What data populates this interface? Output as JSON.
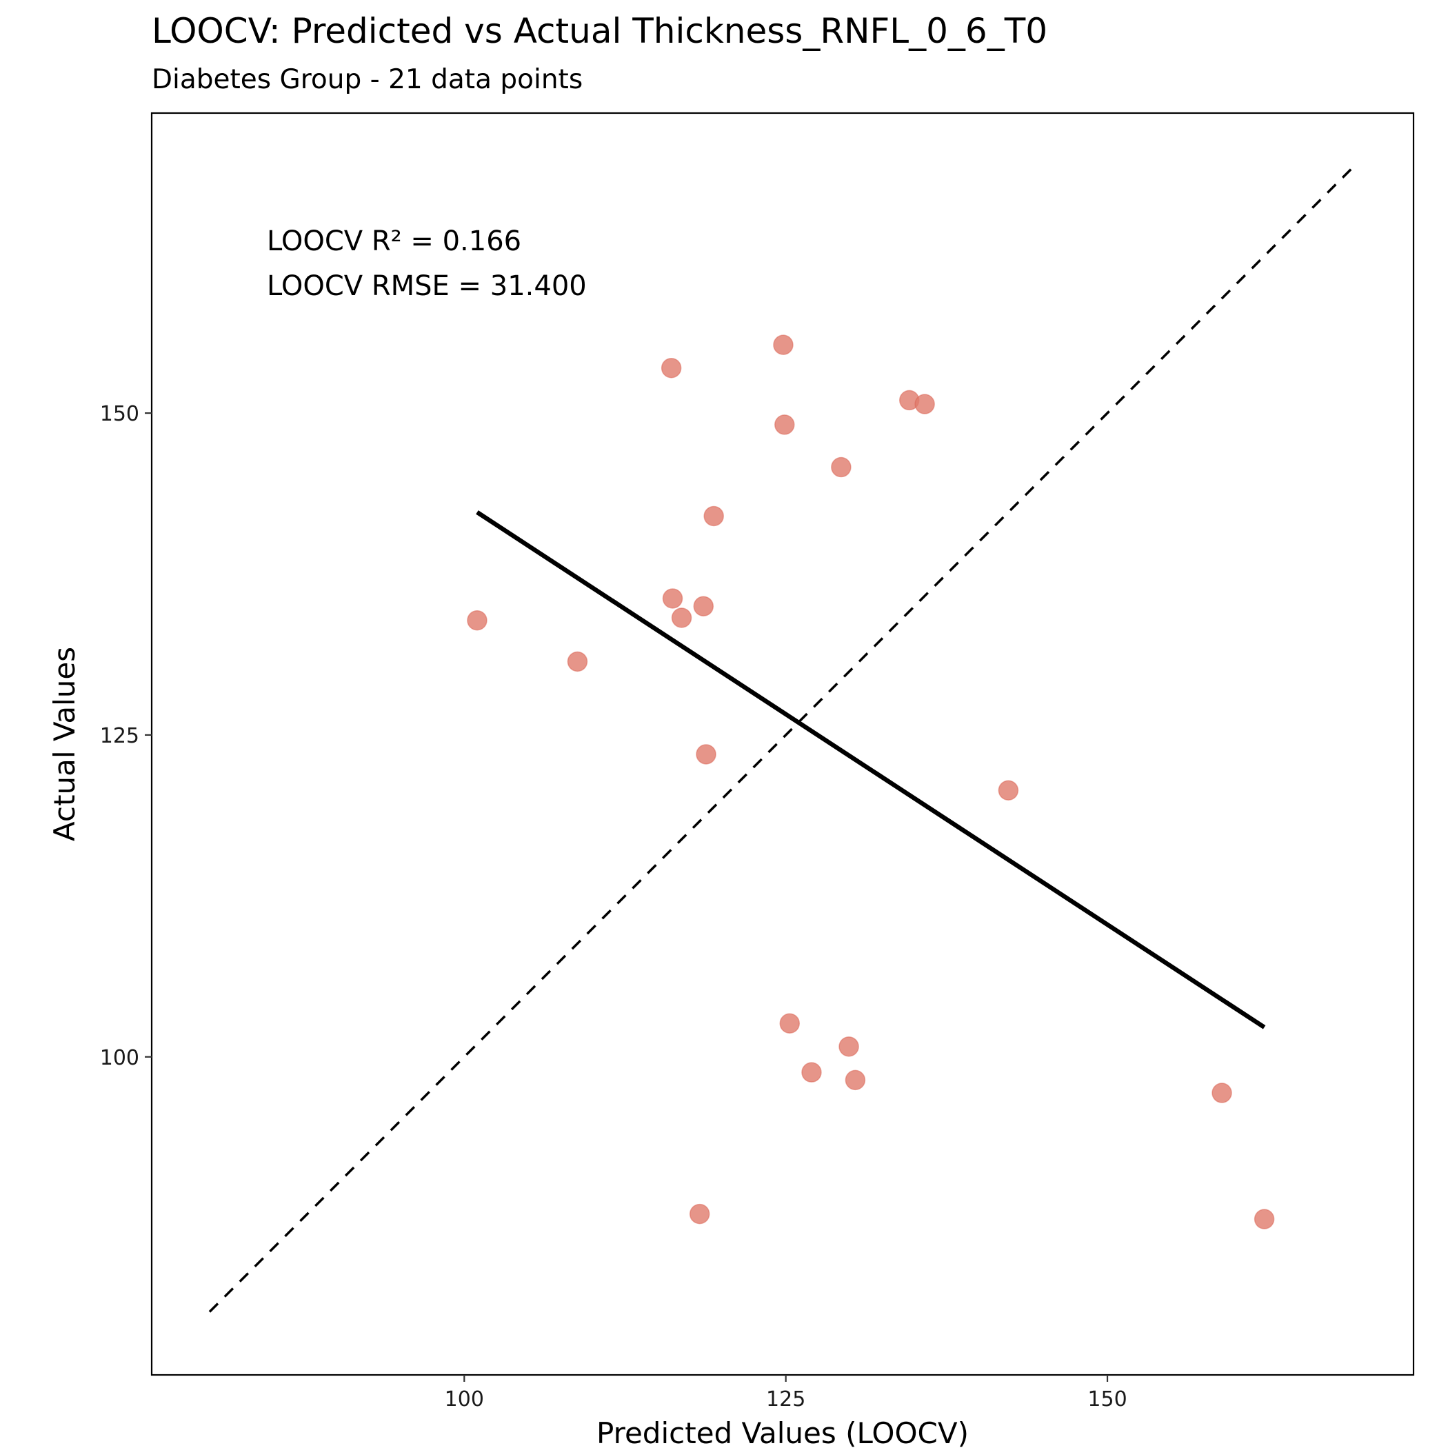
{
  "chart_data": {
    "type": "scatter",
    "title": "LOOCV: Predicted vs Actual Thickness_RNFL_0_6_T0",
    "subtitle": "Diabetes Group - 21 data points",
    "xlabel": "Predicted Values (LOOCV)",
    "ylabel": "Actual Values",
    "xlim": [
      75.7,
      173.8
    ],
    "ylim": [
      75.3,
      173.3
    ],
    "x_ticks": [
      100,
      125,
      150
    ],
    "y_ticks": [
      100,
      125,
      150
    ],
    "x_tick_labels": [
      "100",
      "125",
      "150"
    ],
    "y_tick_labels": [
      "100",
      "125",
      "150"
    ],
    "grid": false,
    "annotations": [
      "LOOCV R² = 0.166",
      "LOOCV RMSE = 31.400"
    ],
    "point_color": "#E07B6B",
    "points": [
      {
        "x": 101.0,
        "y": 133.9
      },
      {
        "x": 108.8,
        "y": 130.7
      },
      {
        "x": 116.1,
        "y": 153.5
      },
      {
        "x": 116.2,
        "y": 135.6
      },
      {
        "x": 116.9,
        "y": 134.1
      },
      {
        "x": 118.6,
        "y": 135.0
      },
      {
        "x": 119.4,
        "y": 142.0
      },
      {
        "x": 118.8,
        "y": 123.5
      },
      {
        "x": 118.3,
        "y": 87.8
      },
      {
        "x": 124.8,
        "y": 155.3
      },
      {
        "x": 124.9,
        "y": 149.1
      },
      {
        "x": 125.3,
        "y": 102.6
      },
      {
        "x": 127.0,
        "y": 98.8
      },
      {
        "x": 129.3,
        "y": 145.8
      },
      {
        "x": 129.9,
        "y": 100.8
      },
      {
        "x": 130.4,
        "y": 98.2
      },
      {
        "x": 134.6,
        "y": 151.0
      },
      {
        "x": 135.8,
        "y": 150.7
      },
      {
        "x": 142.3,
        "y": 120.7
      },
      {
        "x": 158.9,
        "y": 97.2
      },
      {
        "x": 162.2,
        "y": 87.4
      }
    ],
    "regression_line": {
      "x": [
        101.0,
        162.2
      ],
      "y": [
        142.3,
        102.3
      ]
    },
    "identity_line": {
      "x": [
        80.2,
        169.4
      ],
      "y": [
        80.2,
        169.4
      ]
    }
  }
}
